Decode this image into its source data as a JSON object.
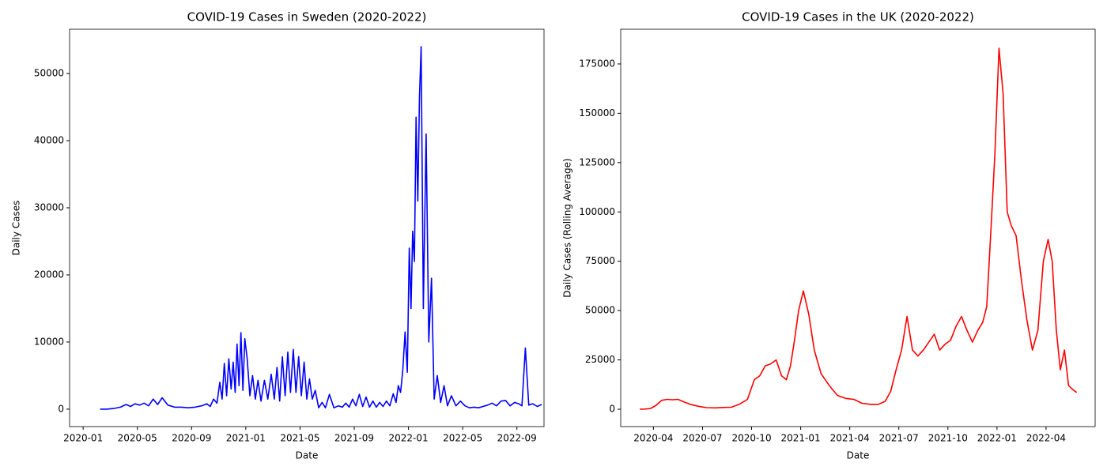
{
  "chart_data": [
    {
      "type": "line",
      "title": "COVID-19 Cases in Sweden (2020-2022)",
      "xlabel": "Date",
      "ylabel": "Daily Cases",
      "xlim": [
        "2019-12",
        "2022-11"
      ],
      "xticks": [
        "2020-01",
        "2020-05",
        "2020-09",
        "2021-01",
        "2021-05",
        "2021-09",
        "2022-01",
        "2022-05",
        "2022-09"
      ],
      "ylim": [
        -2600,
        56600
      ],
      "yticks": [
        0,
        10000,
        20000,
        30000,
        40000,
        50000
      ],
      "x": [
        "2020-02",
        "2020-02",
        "2020-03",
        "2020-03",
        "2020-04",
        "2020-04",
        "2020-04",
        "2020-05",
        "2020-05",
        "2020-05",
        "2020-06",
        "2020-06",
        "2020-06",
        "2020-07",
        "2020-07",
        "2020-08",
        "2020-08",
        "2020-09",
        "2020-09",
        "2020-10",
        "2020-10",
        "2020-10",
        "2020-10",
        "2020-11",
        "2020-11",
        "2020-11",
        "2020-11",
        "2020-11",
        "2020-11",
        "2020-12",
        "2020-12",
        "2020-12",
        "2020-12",
        "2020-12",
        "2020-12",
        "2020-12",
        "2021-01",
        "2021-01",
        "2021-01",
        "2021-01",
        "2021-01",
        "2021-02",
        "2021-02",
        "2021-02",
        "2021-02",
        "2021-03",
        "2021-03",
        "2021-03",
        "2021-03",
        "2021-03",
        "2021-04",
        "2021-04",
        "2021-04",
        "2021-04",
        "2021-04",
        "2021-05",
        "2021-05",
        "2021-05",
        "2021-05",
        "2021-05",
        "2021-06",
        "2021-06",
        "2021-06",
        "2021-06",
        "2021-07",
        "2021-07",
        "2021-07",
        "2021-08",
        "2021-08",
        "2021-08",
        "2021-08",
        "2021-09",
        "2021-09",
        "2021-09",
        "2021-09",
        "2021-10",
        "2021-10",
        "2021-10",
        "2021-10",
        "2021-11",
        "2021-11",
        "2021-11",
        "2021-11",
        "2021-12",
        "2021-12",
        "2021-12",
        "2021-12",
        "2021-12",
        "2021-12",
        "2022-01",
        "2022-01",
        "2022-01",
        "2022-01",
        "2022-01",
        "2022-01",
        "2022-01",
        "2022-01",
        "2022-02",
        "2022-02",
        "2022-02",
        "2022-02",
        "2022-02",
        "2022-03",
        "2022-03",
        "2022-03",
        "2022-03",
        "2022-04",
        "2022-04",
        "2022-04",
        "2022-05",
        "2022-05",
        "2022-05",
        "2022-06",
        "2022-06",
        "2022-06",
        "2022-07",
        "2022-07",
        "2022-07",
        "2022-08",
        "2022-08",
        "2022-08",
        "2022-09",
        "2022-09",
        "2022-09",
        "2022-09",
        "2022-10",
        "2022-10",
        "2022-10"
      ],
      "series": [
        {
          "name": "Sweden",
          "color": "#0000ff",
          "values": [
            0,
            0,
            100,
            300,
            700,
            400,
            800,
            600,
            900,
            500,
            1500,
            700,
            1700,
            600,
            300,
            300,
            200,
            300,
            500,
            800,
            400,
            1500,
            900,
            4000,
            1500,
            6800,
            2000,
            7500,
            3000,
            7000,
            2500,
            9700,
            3500,
            11400,
            2800,
            10500,
            7500,
            2000,
            5000,
            1500,
            4300,
            1200,
            4300,
            1500,
            5200,
            1500,
            6200,
            1200,
            7800,
            2000,
            8500,
            2500,
            8900,
            2500,
            7800,
            2000,
            7000,
            1500,
            4500,
            1500,
            2800,
            200,
            1000,
            200,
            2200,
            200,
            500,
            300,
            900,
            300,
            1500,
            500,
            2200,
            400,
            1800,
            300,
            1200,
            300,
            1000,
            400,
            1200,
            500,
            2300,
            1000,
            3500,
            2500,
            5800,
            11500,
            5500,
            24000,
            15000,
            26500,
            22000,
            43500,
            31000,
            46500,
            54000,
            15000,
            41000,
            10000,
            19500,
            1500,
            5000,
            1000,
            3500,
            500,
            2000,
            500,
            1200,
            500,
            200,
            300,
            200,
            400,
            600,
            900,
            500,
            1200,
            1300,
            500,
            1000,
            800,
            500,
            9100,
            600,
            800,
            400,
            700
          ]
        }
      ]
    },
    {
      "type": "line",
      "title": "COVID-19 Cases in the UK (2020-2022)",
      "xlabel": "Date",
      "ylabel": "Daily Cases (Rolling Average)",
      "xlim": [
        "2020-02",
        "2022-07"
      ],
      "xticks": [
        "2020-04",
        "2020-07",
        "2020-10",
        "2021-01",
        "2021-04",
        "2021-07",
        "2021-10",
        "2022-01",
        "2022-04"
      ],
      "ylim": [
        -8800,
        192600
      ],
      "yticks": [
        0,
        25000,
        50000,
        75000,
        100000,
        125000,
        150000,
        175000
      ],
      "x": [
        "2020-03",
        "2020-03",
        "2020-03",
        "2020-04",
        "2020-04",
        "2020-04",
        "2020-05",
        "2020-05",
        "2020-05",
        "2020-06",
        "2020-06",
        "2020-07",
        "2020-07",
        "2020-08",
        "2020-08",
        "2020-09",
        "2020-09",
        "2020-10",
        "2020-10",
        "2020-10",
        "2020-11",
        "2020-11",
        "2020-11",
        "2020-12",
        "2020-12",
        "2020-12",
        "2020-12",
        "2021-01",
        "2021-01",
        "2021-01",
        "2021-02",
        "2021-02",
        "2021-03",
        "2021-03",
        "2021-04",
        "2021-04",
        "2021-05",
        "2021-05",
        "2021-06",
        "2021-06",
        "2021-06",
        "2021-07",
        "2021-07",
        "2021-07",
        "2021-08",
        "2021-08",
        "2021-08",
        "2021-09",
        "2021-09",
        "2021-09",
        "2021-10",
        "2021-10",
        "2021-10",
        "2021-11",
        "2021-11",
        "2021-11",
        "2021-12",
        "2021-12",
        "2021-12",
        "2021-12",
        "2022-01",
        "2022-01",
        "2022-01",
        "2022-01",
        "2022-02",
        "2022-02",
        "2022-02",
        "2022-03",
        "2022-03",
        "2022-03",
        "2022-04",
        "2022-04",
        "2022-04",
        "2022-04",
        "2022-05",
        "2022-05",
        "2022-05",
        "2022-05"
      ],
      "series": [
        {
          "name": "UK",
          "color": "#ff0000",
          "values": [
            0,
            100,
            400,
            2000,
            4500,
            5000,
            4800,
            5000,
            3800,
            2500,
            1500,
            800,
            700,
            900,
            1000,
            2500,
            5000,
            15000,
            17000,
            22000,
            23000,
            25000,
            17000,
            15000,
            22000,
            35000,
            50000,
            60000,
            48000,
            30000,
            18000,
            12000,
            7000,
            5500,
            5000,
            3000,
            2500,
            2500,
            4000,
            9000,
            20000,
            30000,
            47000,
            30000,
            27000,
            30000,
            34000,
            38000,
            30000,
            33000,
            35000,
            42000,
            47000,
            40000,
            34000,
            40000,
            44000,
            52000,
            90000,
            130000,
            183000,
            160000,
            100000,
            93000,
            88000,
            65000,
            45000,
            30000,
            40000,
            75000,
            86000,
            75000,
            40000,
            20000,
            30000,
            12000,
            10000,
            8500
          ]
        }
      ]
    }
  ]
}
